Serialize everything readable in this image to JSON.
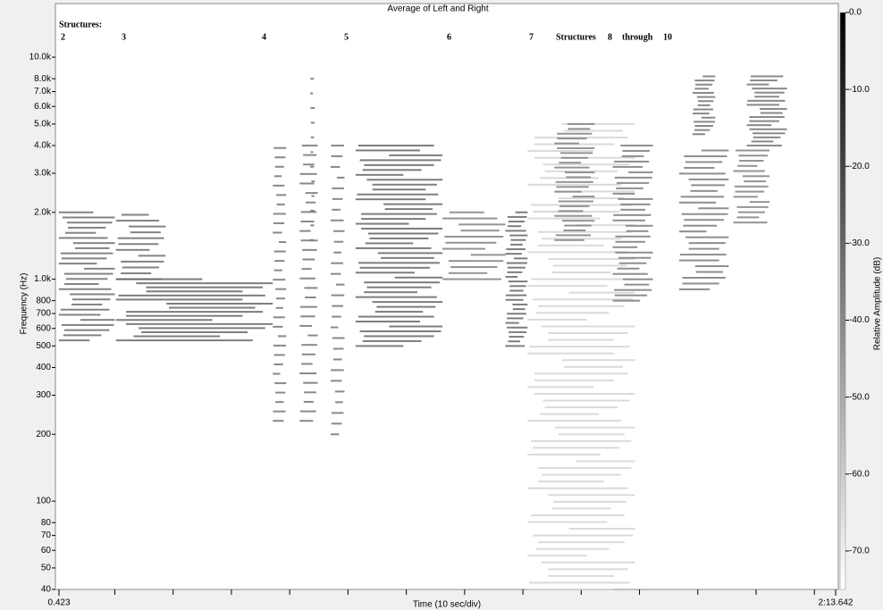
{
  "chart_data": {
    "type": "spectrogram",
    "title": "Average of Left and Right",
    "xlabel": "Time (10 sec/div)",
    "ylabel": "Frequency (Hz)",
    "colorbar_label": "Relative Amplitude (dB)",
    "xlim": [
      0.423,
      133.642
    ],
    "xticks": [
      {
        "value": 0.423,
        "label": "0.423"
      },
      {
        "value": 133.642,
        "label": "2:13.642"
      }
    ],
    "xminor_ticks": [
      10,
      20,
      30,
      40,
      50,
      60,
      70,
      80,
      90,
      100,
      110,
      120,
      130
    ],
    "ylim": [
      40,
      15900
    ],
    "log_y": true,
    "yticks": [
      40,
      50,
      60,
      70,
      80,
      100,
      200,
      300,
      400,
      500,
      600,
      700,
      800,
      {
        "value": 1000,
        "label": "1.0k"
      },
      {
        "value": 2000,
        "label": "2.0k"
      },
      {
        "value": 3000,
        "label": "3.0k"
      },
      {
        "value": 4000,
        "label": "4.0k"
      },
      {
        "value": 5000,
        "label": "5.0k"
      },
      {
        "value": 6000,
        "label": "6.0k"
      },
      {
        "value": 7000,
        "label": "7.0k"
      },
      {
        "value": 8000,
        "label": "8.0k"
      },
      {
        "value": 10000,
        "label": "10.0k"
      }
    ],
    "clim": [
      -75,
      0
    ],
    "cticks": [
      {
        "value": 0,
        "label": "0.0"
      },
      {
        "value": -10,
        "label": "-10.0"
      },
      {
        "value": -20,
        "label": "-20.0"
      },
      {
        "value": -30,
        "label": "-30.0"
      },
      {
        "value": -40,
        "label": "-40.0"
      },
      {
        "value": -50,
        "label": "-50.0"
      },
      {
        "value": -60,
        "label": "-60.0"
      },
      {
        "value": -70,
        "label": "-70.0"
      }
    ],
    "annotations": [
      "Structures:",
      "2",
      "3",
      "4",
      "5",
      "6",
      "7",
      "Structures",
      "8",
      "through",
      "10"
    ],
    "regions": [
      {
        "t0": 0.4,
        "t1": 10,
        "f0": 530,
        "f1": 2000,
        "lines": 26,
        "level": -32
      },
      {
        "t0": 10.2,
        "t1": 18.7,
        "f0": 1000,
        "f1": 1950,
        "lines": 12,
        "level": -32
      },
      {
        "t0": 10.2,
        "t1": 37.1,
        "f0": 530,
        "f1": 1000,
        "lines": 16,
        "level": -30
      },
      {
        "t0": 37.1,
        "t1": 39.4,
        "f0": 230,
        "f1": 3900,
        "lines": 30,
        "level": -34
      },
      {
        "t0": 41.7,
        "t1": 44.8,
        "f0": 230,
        "f1": 4000,
        "lines": 30,
        "level": -34
      },
      {
        "t0": 43.5,
        "t1": 44.3,
        "f0": 1500,
        "f1": 8000,
        "lines": 12,
        "level": -34
      },
      {
        "t0": 47,
        "t1": 49.4,
        "f0": 200,
        "f1": 4000,
        "lines": 28,
        "level": -34
      },
      {
        "t0": 51.3,
        "t1": 66.2,
        "f0": 500,
        "f1": 4000,
        "lines": 42,
        "level": -30
      },
      {
        "t0": 66.2,
        "t1": 77,
        "f0": 1000,
        "f1": 2000,
        "lines": 12,
        "level": -38
      },
      {
        "t0": 77,
        "t1": 80.8,
        "f0": 500,
        "f1": 2000,
        "lines": 30,
        "level": -30
      },
      {
        "t0": 80.8,
        "t1": 99.2,
        "f0": 40,
        "f1": 5000,
        "lines": 70,
        "level": -62
      },
      {
        "t0": 85.4,
        "t1": 92.3,
        "f0": 1500,
        "f1": 5000,
        "lines": 25,
        "level": -38
      },
      {
        "t0": 95.4,
        "t1": 102.3,
        "f0": 800,
        "f1": 4000,
        "lines": 30,
        "level": -36
      },
      {
        "t0": 106.8,
        "t1": 115.3,
        "f0": 900,
        "f1": 3800,
        "lines": 25,
        "level": -36
      },
      {
        "t0": 109.1,
        "t1": 113,
        "f0": 4500,
        "f1": 8200,
        "lines": 15,
        "level": -34
      },
      {
        "t0": 116.1,
        "t1": 122.3,
        "f0": 1800,
        "f1": 3800,
        "lines": 15,
        "level": -38
      },
      {
        "t0": 118.4,
        "t1": 125.3,
        "f0": 4000,
        "f1": 8200,
        "lines": 18,
        "level": -34
      }
    ]
  }
}
